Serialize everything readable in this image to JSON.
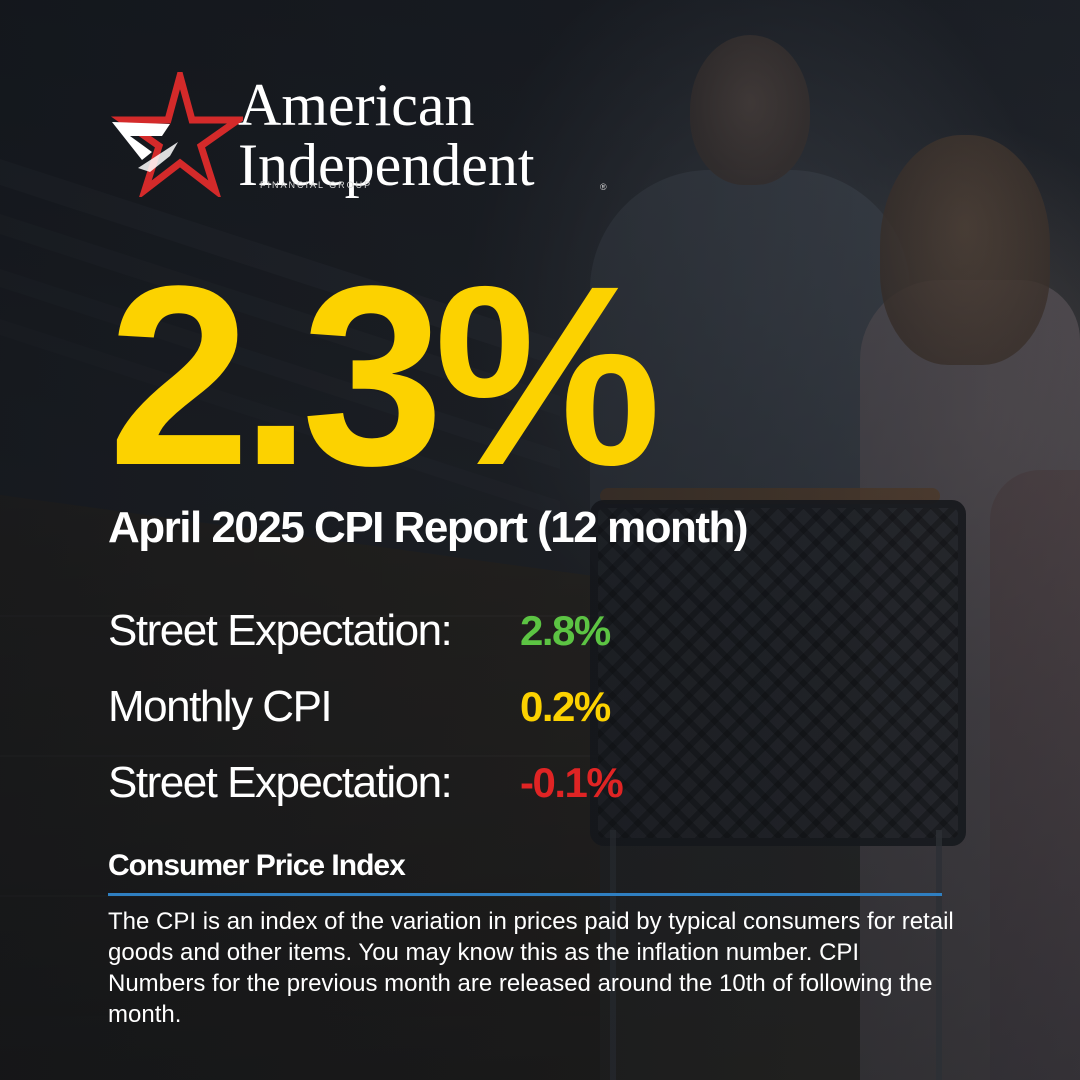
{
  "brand": {
    "line1": "American",
    "line2": "Independent",
    "tagline": "FINANCIAL GROUP",
    "registered_mark": "®",
    "colors": {
      "star_red": "#d42a2a",
      "star_white": "#ffffff"
    }
  },
  "headline": {
    "rate": "2.3%",
    "title": "April 2025 CPI Report (12 month)"
  },
  "metrics": [
    {
      "label": "Street Expectation:",
      "value": "2.8%",
      "color": "#5cc443"
    },
    {
      "label": "Monthly CPI",
      "value": "0.2%",
      "color": "#fcd200"
    },
    {
      "label": "Street Expectation:",
      "value": "-0.1%",
      "color": "#e02424"
    }
  ],
  "definition": {
    "heading": "Consumer Price Index",
    "body": "The CPI is an index of the variation in prices paid by typical consumers for retail goods and other items. You may know this as the inflation number. CPI Numbers for the previous month are released around the 10th of following the month.",
    "rule_color": "#2f7fc1"
  },
  "theme": {
    "accent_yellow": "#fcd200",
    "text": "#ffffff"
  }
}
